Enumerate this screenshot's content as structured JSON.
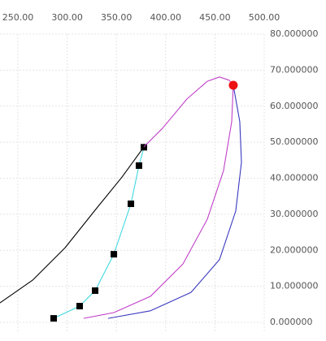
{
  "chart_data": {
    "type": "line",
    "xlim": [
      231.85,
      500
    ],
    "ylim": [
      0,
      80
    ],
    "xticks": [
      {
        "value": 250,
        "label": "250.00"
      },
      {
        "value": 300,
        "label": "300.00"
      },
      {
        "value": 350,
        "label": "350.00"
      },
      {
        "value": 400,
        "label": "400.00"
      },
      {
        "value": 450,
        "label": "450.00"
      },
      {
        "value": 500,
        "label": "500.00"
      }
    ],
    "yticks": [
      {
        "value": 0,
        "label": "0.000000"
      },
      {
        "value": 10,
        "label": "10.000000"
      },
      {
        "value": 20,
        "label": "20.000000"
      },
      {
        "value": 30,
        "label": "30.000000"
      },
      {
        "value": 40,
        "label": "40.000000"
      },
      {
        "value": 50,
        "label": "50.000000"
      },
      {
        "value": 60,
        "label": "60.000000"
      },
      {
        "value": 70,
        "label": "70.000000"
      },
      {
        "value": 80,
        "label": "80.000000"
      }
    ],
    "grid": true,
    "series": [
      {
        "color": "#000000",
        "x": [
          231.8,
          264.9,
          297.9,
          330.9,
          355.6,
          377.9
        ],
        "values": [
          5.4,
          11.7,
          20.7,
          32.0,
          40.3,
          48.7
        ]
      },
      {
        "color": "#40d8e0",
        "marker": "square",
        "x": [
          286.3,
          312.7,
          328.4,
          347.4,
          364.7,
          372.9,
          377.9
        ],
        "values": [
          1.1,
          4.5,
          8.8,
          18.9,
          32.9,
          43.5,
          48.6
        ]
      },
      {
        "color": "#c040c8",
        "x": [
          377.9,
          396.9,
          421.6,
          442.2,
          454.6,
          464.5,
          468.6,
          467.0,
          458.7,
          442.2,
          417.5,
          384.5,
          347.4,
          316.8
        ],
        "values": [
          48.7,
          53.9,
          62.0,
          66.9,
          68.1,
          67.2,
          65.8,
          55.7,
          42.1,
          28.6,
          16.2,
          7.2,
          2.7,
          1.1
        ]
      },
      {
        "color": "#3838c0",
        "x": [
          468.6,
          475.2,
          476.9,
          471.1,
          454.6,
          425.7,
          384.5,
          341.6
        ],
        "values": [
          65.8,
          55.7,
          44.4,
          30.9,
          17.4,
          8.3,
          3.2,
          1.1
        ]
      },
      {
        "color": "#ee1111",
        "marker": "dot",
        "x": [
          468.6
        ],
        "values": [
          65.8
        ]
      }
    ]
  }
}
